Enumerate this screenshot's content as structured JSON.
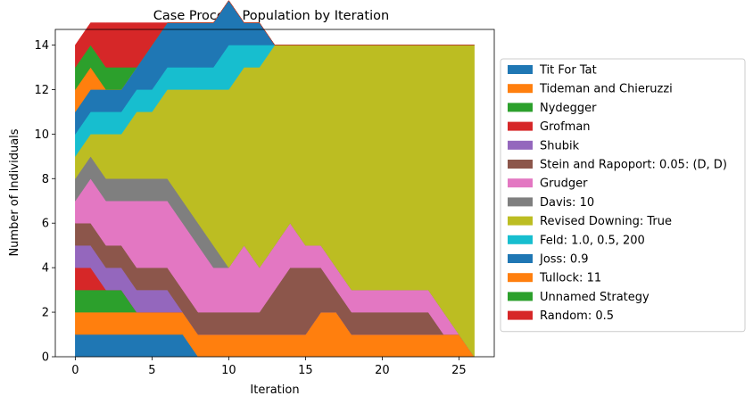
{
  "chart_data": {
    "type": "area",
    "title": "Case Process Population by Iteration",
    "xlabel": "Iteration",
    "ylabel": "Number of Individuals",
    "xlim": [
      -1.3,
      27.3
    ],
    "ylim": [
      0,
      14.7
    ],
    "xticks": [
      0,
      5,
      10,
      15,
      20,
      25
    ],
    "yticks": [
      0,
      2,
      4,
      6,
      8,
      10,
      12,
      14
    ],
    "grid": false,
    "legend_position": "center-right-outside",
    "x": [
      0,
      1,
      2,
      3,
      4,
      5,
      6,
      7,
      8,
      9,
      10,
      11,
      12,
      13,
      14,
      15,
      16,
      17,
      18,
      19,
      20,
      21,
      22,
      23,
      24,
      25,
      26
    ],
    "series": [
      {
        "name": "Tit For Tat",
        "color": "#1f77b4",
        "values": [
          1,
          1,
          1,
          1,
          1,
          1,
          1,
          1,
          0,
          0,
          0,
          0,
          0,
          0,
          0,
          0,
          0,
          0,
          0,
          0,
          0,
          0,
          0,
          0,
          0,
          0,
          0
        ]
      },
      {
        "name": "Tideman and Chieruzzi",
        "color": "#ff7f0e",
        "values": [
          1,
          1,
          1,
          1,
          1,
          1,
          1,
          1,
          1,
          1,
          1,
          1,
          1,
          1,
          1,
          1,
          2,
          2,
          1,
          1,
          1,
          1,
          1,
          1,
          1,
          1,
          0
        ]
      },
      {
        "name": "Nydegger",
        "color": "#2ca02c",
        "values": [
          1,
          1,
          1,
          1,
          0,
          0,
          0,
          0,
          0,
          0,
          0,
          0,
          0,
          0,
          0,
          0,
          0,
          0,
          0,
          0,
          0,
          0,
          0,
          0,
          0,
          0,
          0
        ]
      },
      {
        "name": "Grofman",
        "color": "#d62728",
        "values": [
          1,
          1,
          0,
          0,
          0,
          0,
          0,
          0,
          0,
          0,
          0,
          0,
          0,
          0,
          0,
          0,
          0,
          0,
          0,
          0,
          0,
          0,
          0,
          0,
          0,
          0,
          0
        ]
      },
      {
        "name": "Shubik",
        "color": "#9467bd",
        "values": [
          1,
          1,
          1,
          1,
          1,
          1,
          1,
          0,
          0,
          0,
          0,
          0,
          0,
          0,
          0,
          0,
          0,
          0,
          0,
          0,
          0,
          0,
          0,
          0,
          0,
          0,
          0
        ]
      },
      {
        "name": "Stein and Rapoport: 0.05: (D, D)",
        "color": "#8c564b",
        "values": [
          1,
          1,
          1,
          1,
          1,
          1,
          1,
          1,
          1,
          1,
          1,
          1,
          1,
          2,
          3,
          3,
          2,
          1,
          1,
          1,
          1,
          1,
          1,
          1,
          0,
          0,
          0
        ]
      },
      {
        "name": "Grudger",
        "color": "#e377c2",
        "values": [
          1,
          2,
          2,
          2,
          3,
          3,
          3,
          3,
          3,
          2,
          2,
          3,
          2,
          2,
          2,
          1,
          1,
          1,
          1,
          1,
          1,
          1,
          1,
          1,
          1,
          0,
          0
        ]
      },
      {
        "name": "Davis: 10",
        "color": "#7f7f7f",
        "values": [
          1,
          1,
          1,
          1,
          1,
          1,
          1,
          1,
          1,
          1,
          0,
          0,
          0,
          0,
          0,
          0,
          0,
          0,
          0,
          0,
          0,
          0,
          0,
          0,
          0,
          0,
          0
        ]
      },
      {
        "name": "Revised Downing: True",
        "color": "#bcbd22",
        "values": [
          1,
          1,
          2,
          2,
          3,
          3,
          4,
          5,
          6,
          7,
          8,
          8,
          9,
          9,
          8,
          9,
          9,
          10,
          11,
          11,
          11,
          11,
          11,
          11,
          12,
          13,
          14
        ]
      },
      {
        "name": "Feld: 1.0, 0.5, 200",
        "color": "#17becf",
        "values": [
          1,
          1,
          1,
          1,
          1,
          1,
          1,
          1,
          1,
          1,
          2,
          1,
          1,
          0,
          0,
          0,
          0,
          0,
          0,
          0,
          0,
          0,
          0,
          0,
          0,
          0,
          0
        ]
      },
      {
        "name": "Joss: 0.9",
        "color": "#1f77b4",
        "values": [
          1,
          1,
          1,
          1,
          1,
          2,
          2,
          2,
          2,
          2,
          2,
          1,
          1,
          0,
          0,
          0,
          0,
          0,
          0,
          0,
          0,
          0,
          0,
          0,
          0,
          0,
          0
        ]
      },
      {
        "name": "Tullock: 11",
        "color": "#ff7f0e",
        "values": [
          1,
          1,
          0,
          0,
          0,
          0,
          0,
          0,
          0,
          0,
          0,
          0,
          0,
          0,
          0,
          0,
          0,
          0,
          0,
          0,
          0,
          0,
          0,
          0,
          0,
          0,
          0
        ]
      },
      {
        "name": "Unnamed Strategy",
        "color": "#2ca02c",
        "values": [
          1,
          1,
          1,
          1,
          0,
          0,
          0,
          0,
          0,
          0,
          0,
          0,
          0,
          0,
          0,
          0,
          0,
          0,
          0,
          0,
          0,
          0,
          0,
          0,
          0,
          0,
          0
        ]
      },
      {
        "name": "Random: 0.5",
        "color": "#d62728",
        "values": [
          1,
          1,
          2,
          2,
          2,
          1,
          0,
          0,
          0,
          0,
          0,
          0,
          0,
          0,
          0,
          0,
          0,
          0,
          0,
          0,
          0,
          0,
          0,
          0,
          0,
          0,
          0
        ]
      }
    ]
  }
}
